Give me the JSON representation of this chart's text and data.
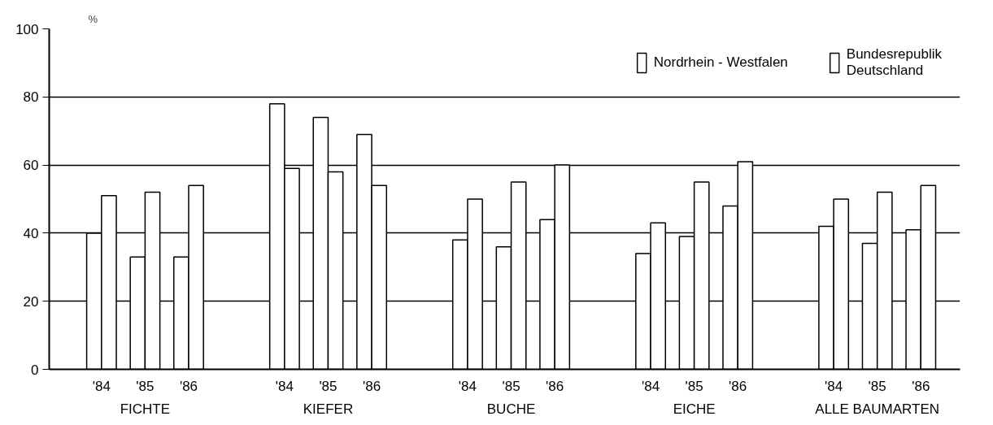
{
  "chart_data": {
    "type": "bar",
    "ylabel": "%",
    "categories": [
      "'84",
      "'85",
      "'86",
      "'84",
      "'85",
      "'86",
      "'84",
      "'85",
      "'86",
      "'84",
      "'85",
      "'86",
      "'84",
      "'85",
      "'86"
    ],
    "series": [
      {
        "name": "Nordrhein - Westfalen",
        "color": "#ffffff",
        "values": [
          40,
          33,
          33,
          78,
          74,
          69,
          38,
          36,
          44,
          34,
          39,
          48,
          42,
          37,
          41
        ]
      },
      {
        "name": "Bundesrepublik Deutschland",
        "color": "#ffffff",
        "values": [
          51,
          52,
          54,
          59,
          58,
          54,
          50,
          55,
          60,
          43,
          55,
          61,
          50,
          52,
          54
        ]
      }
    ],
    "annotations": [
      "FICHTE",
      "KIEFER",
      "BUCHE",
      "EICHE",
      "ALLE BAUMARTEN"
    ],
    "ylim": [
      0,
      100
    ],
    "yticks": [
      0,
      20,
      40,
      60,
      80,
      100
    ],
    "grid": "y",
    "legend": "top right"
  }
}
